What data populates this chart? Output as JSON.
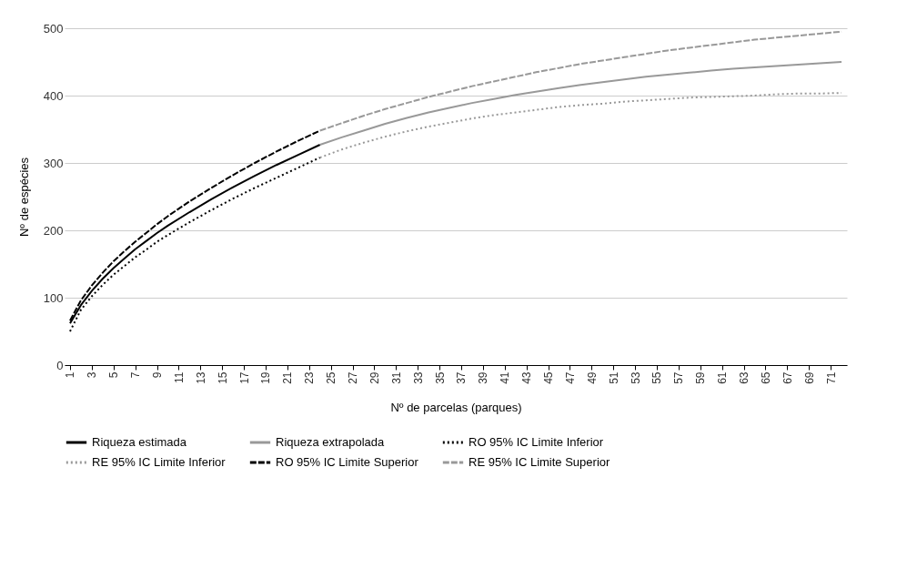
{
  "chart_data": {
    "type": "line",
    "xlabel": "Nº de parcelas (parques)",
    "ylabel": "Nº de espécies",
    "xlim": [
      0.5,
      72.5
    ],
    "xticks": [
      1,
      3,
      5,
      7,
      9,
      11,
      13,
      15,
      17,
      19,
      21,
      23,
      25,
      27,
      29,
      31,
      33,
      35,
      37,
      39,
      41,
      43,
      45,
      47,
      49,
      51,
      53,
      55,
      57,
      59,
      61,
      63,
      65,
      67,
      69,
      71
    ],
    "ylim": [
      0,
      500
    ],
    "yticks": [
      0,
      100,
      200,
      300,
      400,
      500
    ],
    "grid": "y",
    "legend": "bottom",
    "marker": "none",
    "series": [
      {
        "name": "Riqueza estimada",
        "color": "#000000",
        "line_style": "solid",
        "x": [
          1,
          2,
          3,
          4,
          5,
          6,
          7,
          8,
          9,
          10,
          12,
          14,
          16,
          18,
          20,
          22,
          24
        ],
        "values": [
          62,
          89,
          110,
          128,
          144,
          158,
          172,
          184,
          196,
          207,
          227,
          246,
          264,
          281,
          297,
          312,
          327
        ]
      },
      {
        "name": "Riqueza extrapolada",
        "color": "#999999",
        "line_style": "solid",
        "x": [
          24,
          26,
          28,
          30,
          32,
          34,
          36,
          38,
          40,
          42,
          44,
          46,
          48,
          50,
          52,
          54,
          56,
          58,
          60,
          62,
          64,
          66,
          68,
          70,
          72
        ],
        "values": [
          327,
          338,
          348,
          358,
          367,
          375,
          382,
          389,
          395,
          401,
          406,
          411,
          416,
          420,
          424,
          428,
          431,
          434,
          437,
          440,
          442,
          444,
          446,
          448,
          450
        ]
      },
      {
        "name": "RO 95% IC Limite Inferior",
        "color": "#000000",
        "line_style": "dotted",
        "x": [
          1,
          2,
          3,
          4,
          5,
          6,
          7,
          8,
          9,
          10,
          12,
          14,
          16,
          18,
          20,
          22,
          24
        ],
        "values": [
          50,
          82,
          102,
          119,
          134,
          147,
          160,
          171,
          183,
          193,
          212,
          230,
          247,
          263,
          278,
          293,
          308
        ]
      },
      {
        "name": "RE 95% IC Limite Inferior",
        "color": "#999999",
        "line_style": "dotted",
        "x": [
          24,
          26,
          28,
          30,
          32,
          34,
          36,
          38,
          40,
          42,
          44,
          46,
          48,
          50,
          52,
          54,
          56,
          58,
          60,
          62,
          64,
          66,
          68,
          70,
          72
        ],
        "values": [
          308,
          320,
          330,
          339,
          347,
          354,
          360,
          366,
          371,
          375,
          379,
          383,
          386,
          388,
          391,
          393,
          395,
          397,
          398,
          399,
          400,
          402,
          403,
          403,
          404
        ]
      },
      {
        "name": "RO 95% IC Limite Superior",
        "color": "#000000",
        "line_style": "dashed",
        "x": [
          1,
          2,
          3,
          4,
          5,
          6,
          7,
          8,
          9,
          10,
          12,
          14,
          16,
          18,
          20,
          22,
          24
        ],
        "values": [
          66,
          96,
          118,
          137,
          154,
          169,
          183,
          196,
          209,
          221,
          243,
          263,
          282,
          300,
          317,
          333,
          348
        ]
      },
      {
        "name": "RE 95% IC Limite Superior",
        "color": "#999999",
        "line_style": "dashed",
        "x": [
          24,
          26,
          28,
          30,
          32,
          34,
          36,
          38,
          40,
          42,
          44,
          46,
          48,
          50,
          52,
          54,
          56,
          58,
          60,
          62,
          64,
          66,
          68,
          70,
          72
        ],
        "values": [
          348,
          359,
          370,
          380,
          389,
          398,
          406,
          414,
          421,
          428,
          435,
          441,
          447,
          452,
          457,
          462,
          467,
          471,
          475,
          479,
          483,
          486,
          489,
          492,
          495
        ]
      }
    ]
  }
}
